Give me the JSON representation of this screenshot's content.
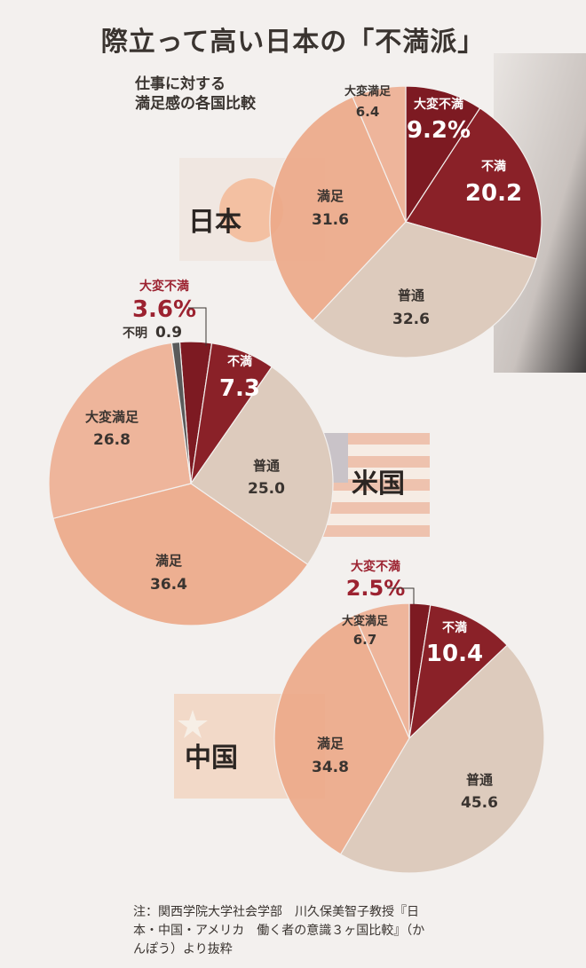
{
  "title": "際立って高い日本の「不満派」",
  "subtitle": [
    "仕事に対する",
    "満足感の各国比較"
  ],
  "note": [
    "注：関西学院大学社会学部　川久保美智子教授『日",
    "本・中国・アメリカ　働く者の意識３ヶ国比較』（か",
    "んぽう）より抜粋"
  ],
  "colors": {
    "very_dissatisfied": "#7d1a22",
    "dissatisfied": "#8a2128",
    "neutral": "#ddcbbd",
    "satisfied": "#edaa8a",
    "very_satisfied": "#eeb194",
    "unknown": "#5a5a5a",
    "highlight": "#9c2230",
    "text_dark": "#3a3430"
  },
  "chart_data": [
    {
      "type": "pie",
      "country": "日本",
      "slices": [
        {
          "label": "大変不満",
          "value": 9.2,
          "display": "9.2%",
          "color_key": "very_dissatisfied"
        },
        {
          "label": "不満",
          "value": 20.2,
          "display": "20.2",
          "color_key": "dissatisfied"
        },
        {
          "label": "普通",
          "value": 32.6,
          "display": "32.6",
          "color_key": "neutral"
        },
        {
          "label": "満足",
          "value": 31.6,
          "display": "31.6",
          "color_key": "satisfied"
        },
        {
          "label": "大変満足",
          "value": 6.4,
          "display": "6.4",
          "color_key": "very_satisfied"
        }
      ]
    },
    {
      "type": "pie",
      "country": "米国",
      "slices": [
        {
          "label": "大変不満",
          "value": 3.6,
          "display": "3.6%",
          "color_key": "very_dissatisfied"
        },
        {
          "label": "不満",
          "value": 7.3,
          "display": "7.3",
          "color_key": "dissatisfied"
        },
        {
          "label": "普通",
          "value": 25.0,
          "display": "25.0",
          "color_key": "neutral"
        },
        {
          "label": "満足",
          "value": 36.4,
          "display": "36.4",
          "color_key": "satisfied"
        },
        {
          "label": "大変満足",
          "value": 26.8,
          "display": "26.8",
          "color_key": "very_satisfied"
        },
        {
          "label": "不明",
          "value": 0.9,
          "display": "0.9",
          "color_key": "unknown"
        }
      ]
    },
    {
      "type": "pie",
      "country": "中国",
      "slices": [
        {
          "label": "大変不満",
          "value": 2.5,
          "display": "2.5%",
          "color_key": "very_dissatisfied"
        },
        {
          "label": "不満",
          "value": 10.4,
          "display": "10.4",
          "color_key": "dissatisfied"
        },
        {
          "label": "普通",
          "value": 45.6,
          "display": "45.6",
          "color_key": "neutral"
        },
        {
          "label": "満足",
          "value": 34.8,
          "display": "34.8",
          "color_key": "satisfied"
        },
        {
          "label": "大変満足",
          "value": 6.7,
          "display": "6.7",
          "color_key": "very_satisfied"
        }
      ]
    }
  ]
}
